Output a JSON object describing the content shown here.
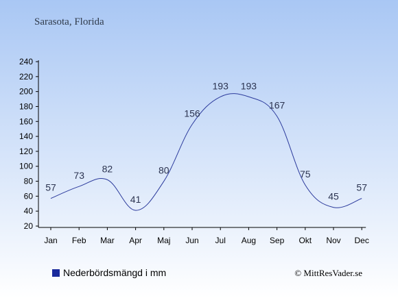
{
  "header": {
    "location": "Sarasota, Florida"
  },
  "legend": {
    "label": "Nederbördsmängd i mm"
  },
  "credit": "© MittResVader.se",
  "colors": {
    "line": "#2b3a9c",
    "legend_marker": "#1a2a9c",
    "bg_top": "#a9c7f4",
    "bg_bottom": "#ffffff"
  },
  "chart_data": {
    "type": "line",
    "categories": [
      "Jan",
      "Feb",
      "Mar",
      "Apr",
      "Maj",
      "Jun",
      "Jul",
      "Aug",
      "Sep",
      "Okt",
      "Nov",
      "Dec"
    ],
    "series": [
      {
        "name": "Nederbördsmängd i mm",
        "values": [
          57,
          73,
          82,
          41,
          80,
          156,
          193,
          193,
          167,
          75,
          45,
          57
        ]
      }
    ],
    "data_labels": [
      "57",
      "73",
      "82",
      "41",
      "80",
      "156",
      "193",
      "193",
      "167",
      "75",
      "45",
      "57"
    ],
    "y_ticks": [
      "20",
      "40",
      "60",
      "80",
      "100",
      "120",
      "140",
      "160",
      "180",
      "200",
      "220",
      "240"
    ],
    "ylim": [
      20,
      240
    ],
    "grid": false,
    "legend_position": "bottom-left"
  }
}
